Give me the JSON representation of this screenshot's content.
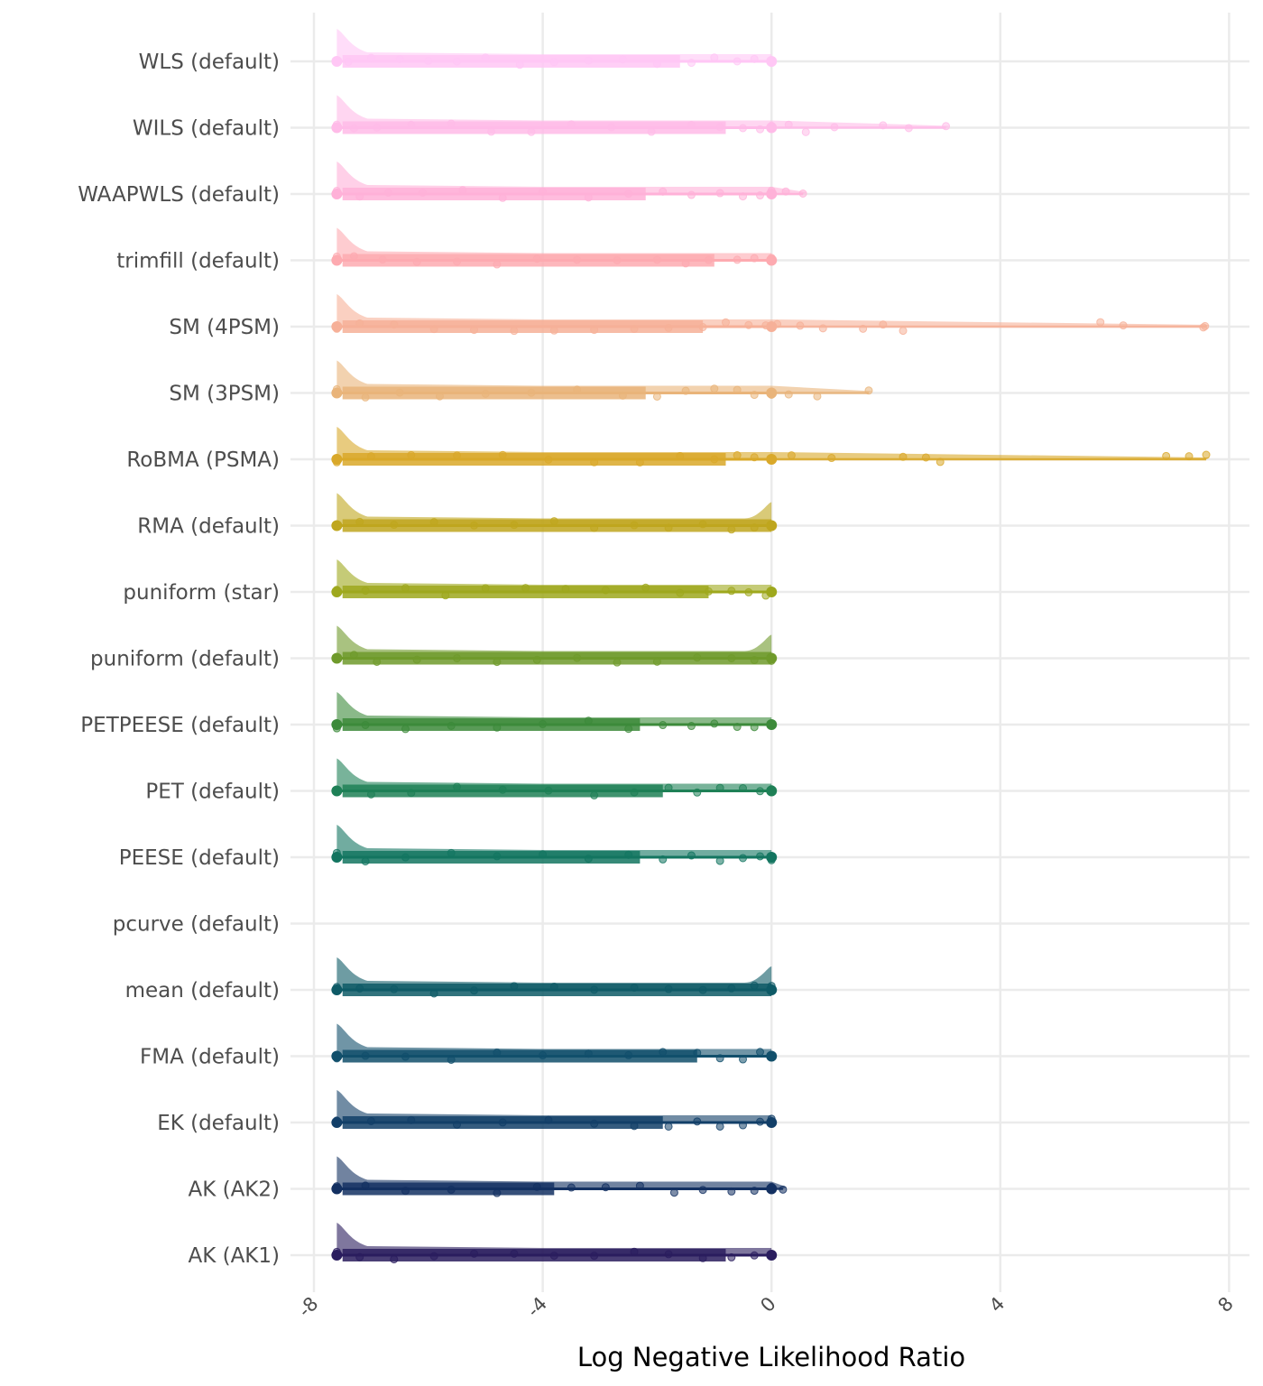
{
  "chart_data": {
    "type": "raincloud",
    "title": "",
    "xlabel": "Log Negative Likelihood Ratio",
    "ylabel": "",
    "xlim": [
      -8,
      8
    ],
    "xticks": [
      -8,
      -4,
      0,
      4,
      8
    ],
    "xtick_labels": [
      "-8",
      "-4",
      "0",
      "4",
      "8"
    ],
    "grid": true,
    "legend": "none",
    "series": [
      {
        "label": "WLS (default)",
        "color": "#ffc7f5",
        "box": [
          -7.6,
          -7.5,
          -1.6,
          0.0
        ],
        "max": 0.0,
        "points": [
          -7.6,
          -7.4,
          -7.0,
          -6.5,
          -6.0,
          -5.5,
          -5.0,
          -4.4,
          -3.8,
          -3.2,
          -2.6,
          -2.0,
          -1.4,
          -1.0,
          -0.6,
          -0.3,
          0.0
        ]
      },
      {
        "label": "WILS (default)",
        "color": "#ffbbe8",
        "box": [
          -7.6,
          -7.5,
          -0.8,
          0.0
        ],
        "max": 3.05,
        "points": [
          -7.6,
          -7.3,
          -6.9,
          -6.3,
          -5.6,
          -4.9,
          -4.2,
          -3.5,
          -2.8,
          -2.1,
          -1.4,
          -0.9,
          -0.5,
          -0.2,
          0.0,
          0.3,
          0.6,
          1.1,
          1.95,
          2.4,
          3.05
        ]
      },
      {
        "label": "WAAPWLS (default)",
        "color": "#ffb1d8",
        "box": [
          -7.6,
          -7.5,
          -2.2,
          0.0
        ],
        "max": 0.55,
        "points": [
          -7.6,
          -7.2,
          -6.7,
          -6.1,
          -5.4,
          -4.7,
          -4.0,
          -3.2,
          -2.5,
          -1.9,
          -1.4,
          -0.9,
          -0.5,
          -0.2,
          0.0,
          0.25,
          0.55
        ]
      },
      {
        "label": "trimfill (default)",
        "color": "#fdaab0",
        "box": [
          -7.6,
          -7.5,
          -1.0,
          0.0
        ],
        "max": 0.0,
        "points": [
          -7.6,
          -7.3,
          -6.8,
          -6.2,
          -5.5,
          -4.8,
          -4.1,
          -3.4,
          -2.7,
          -2.0,
          -1.5,
          -1.1,
          -0.6,
          -0.3,
          0.0
        ]
      },
      {
        "label": "SM (4PSM)",
        "color": "#f6b098",
        "box": [
          -7.6,
          -7.5,
          -1.2,
          0.0
        ],
        "max": 7.6,
        "points": [
          -7.6,
          -7.2,
          -6.6,
          -5.9,
          -5.2,
          -4.5,
          -3.8,
          -3.1,
          -2.4,
          -1.8,
          -1.2,
          -0.8,
          -0.4,
          -0.1,
          0.1,
          0.5,
          0.9,
          1.6,
          1.95,
          2.3,
          5.75,
          6.15,
          7.55,
          7.58
        ]
      },
      {
        "label": "SM (3PSM)",
        "color": "#e9b47a",
        "box": [
          -7.6,
          -7.5,
          -2.2,
          0.0
        ],
        "max": 1.7,
        "points": [
          -7.6,
          -7.1,
          -6.5,
          -5.8,
          -5.0,
          -4.2,
          -3.4,
          -2.6,
          -2.0,
          -1.5,
          -1.0,
          -0.6,
          -0.3,
          0.0,
          0.3,
          0.8,
          1.7
        ]
      },
      {
        "label": "RoBMA (PSMA)",
        "color": "#d9a829",
        "box": [
          -7.6,
          -7.5,
          -0.8,
          0.0
        ],
        "max": 7.6,
        "points": [
          -7.6,
          -7.0,
          -6.3,
          -5.5,
          -4.7,
          -3.9,
          -3.1,
          -2.3,
          -1.6,
          -1.0,
          -0.6,
          -0.3,
          0.0,
          0.35,
          1.05,
          2.3,
          2.7,
          2.95,
          6.9,
          7.3,
          7.6
        ]
      },
      {
        "label": "RMA (default)",
        "color": "#bfa61e",
        "box": [
          -7.6,
          -7.5,
          0.0,
          0.0
        ],
        "max": 0.0,
        "points": [
          -7.6,
          -7.2,
          -6.6,
          -5.9,
          -5.2,
          -4.5,
          -3.8,
          -3.1,
          -2.4,
          -1.8,
          -1.2,
          -0.7,
          -0.3,
          0.0
        ]
      },
      {
        "label": "puniform (star)",
        "color": "#9ea81d",
        "box": [
          -7.6,
          -7.5,
          -1.1,
          0.0
        ],
        "max": 0.0,
        "points": [
          -7.6,
          -7.1,
          -6.4,
          -5.7,
          -5.0,
          -4.3,
          -3.6,
          -2.9,
          -2.2,
          -1.6,
          -1.1,
          -0.7,
          -0.4,
          -0.1,
          0.0
        ]
      },
      {
        "label": "puniform (default)",
        "color": "#6f9a2b",
        "box": [
          -7.6,
          -7.5,
          0.0,
          0.0
        ],
        "max": 0.0,
        "points": [
          -7.6,
          -7.3,
          -6.9,
          -6.2,
          -5.5,
          -4.8,
          -4.1,
          -3.4,
          -2.7,
          -2.0,
          -1.3,
          -0.7,
          -0.3,
          0.0
        ]
      },
      {
        "label": "PETPEESE (default)",
        "color": "#3c8a3a",
        "box": [
          -7.6,
          -7.5,
          -2.3,
          0.0
        ],
        "max": 0.0,
        "points": [
          -7.6,
          -7.1,
          -6.4,
          -5.6,
          -4.8,
          -4.0,
          -3.2,
          -2.5,
          -1.9,
          -1.4,
          -1.0,
          -0.6,
          -0.3,
          0.0
        ]
      },
      {
        "label": "PET (default)",
        "color": "#1e8056",
        "box": [
          -7.6,
          -7.5,
          -1.9,
          0.0
        ],
        "max": 0.0,
        "points": [
          -7.6,
          -7.0,
          -6.3,
          -5.5,
          -4.7,
          -3.9,
          -3.1,
          -2.4,
          -1.8,
          -1.3,
          -0.9,
          -0.5,
          -0.2,
          0.0
        ]
      },
      {
        "label": "PEESE (default)",
        "color": "#137560",
        "box": [
          -7.6,
          -7.5,
          -2.3,
          0.0
        ],
        "max": 0.0,
        "points": [
          -7.6,
          -7.1,
          -6.4,
          -5.6,
          -4.8,
          -4.0,
          -3.2,
          -2.5,
          -1.9,
          -1.4,
          -0.9,
          -0.5,
          -0.2,
          0.0
        ]
      },
      {
        "label": "pcurve (default)",
        "color": "#11665f",
        "box": null,
        "max": null,
        "points": []
      },
      {
        "label": "mean (default)",
        "color": "#0e5a66",
        "box": [
          -7.6,
          -7.5,
          0.0,
          0.0
        ],
        "max": 0.0,
        "points": [
          -7.6,
          -7.2,
          -6.6,
          -5.9,
          -5.2,
          -4.5,
          -3.8,
          -3.1,
          -2.4,
          -1.8,
          -1.2,
          -0.7,
          -0.3,
          0.0
        ]
      },
      {
        "label": "FMA (default)",
        "color": "#114f6b",
        "box": [
          -7.6,
          -7.5,
          -1.3,
          0.0
        ],
        "max": 0.0,
        "points": [
          -7.6,
          -7.1,
          -6.4,
          -5.6,
          -4.8,
          -4.0,
          -3.2,
          -2.5,
          -1.9,
          -1.3,
          -0.9,
          -0.5,
          -0.2,
          0.0
        ]
      },
      {
        "label": "EK (default)",
        "color": "#123f68",
        "box": [
          -7.6,
          -7.5,
          -1.9,
          0.0
        ],
        "max": 0.0,
        "points": [
          -7.6,
          -7.0,
          -6.3,
          -5.5,
          -4.7,
          -3.9,
          -3.1,
          -2.4,
          -1.8,
          -1.3,
          -0.9,
          -0.5,
          -0.2,
          0.0
        ]
      },
      {
        "label": "AK (AK2)",
        "color": "#133061",
        "box": [
          -7.6,
          -7.5,
          -3.8,
          0.0
        ],
        "max": 0.2,
        "points": [
          -7.6,
          -7.1,
          -6.4,
          -5.6,
          -4.8,
          -4.1,
          -3.5,
          -2.9,
          -2.3,
          -1.7,
          -1.2,
          -0.7,
          -0.3,
          0.0,
          0.2
        ]
      },
      {
        "label": "AK (AK1)",
        "color": "#2a1d5e",
        "box": [
          -7.6,
          -7.5,
          -0.8,
          0.0
        ],
        "max": 0.0,
        "points": [
          -7.6,
          -7.2,
          -6.6,
          -5.9,
          -5.2,
          -4.5,
          -3.8,
          -3.1,
          -2.4,
          -1.8,
          -1.2,
          -0.7,
          -0.3,
          0.0
        ]
      }
    ]
  }
}
